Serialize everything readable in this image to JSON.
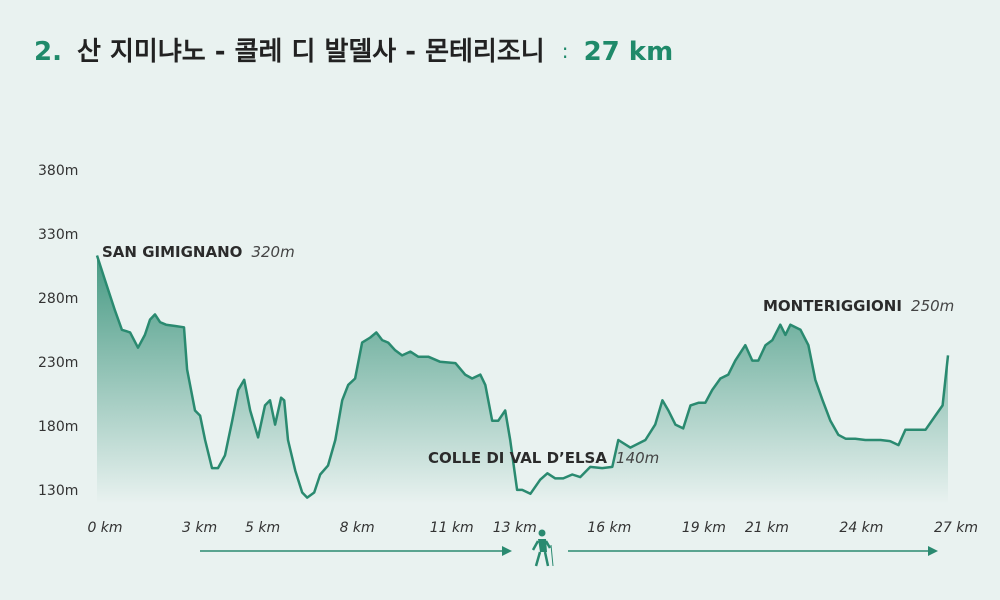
{
  "chart_data": {
    "type": "area",
    "title_number": "2.",
    "title": "산 지미냐노 - 콜레 디 발델사 - 몬테리조니",
    "separator": ":",
    "distance": "27 km",
    "color": "#2a8a70",
    "x": [
      0,
      0.25,
      0.57,
      0.79,
      1.05,
      1.3,
      1.52,
      1.68,
      1.84,
      2,
      2.19,
      2.48,
      2.76,
      2.86,
      3.11,
      3.27,
      3.43,
      3.65,
      3.84,
      4.06,
      4.29,
      4.48,
      4.67,
      4.86,
      5.11,
      5.33,
      5.49,
      5.65,
      5.84,
      5.94,
      6.06,
      6.29,
      6.51,
      6.67,
      6.89,
      7.08,
      7.33,
      7.56,
      7.78,
      7.97,
      8.19,
      8.41,
      8.67,
      8.86,
      9.05,
      9.24,
      9.46,
      9.68,
      9.94,
      10.19,
      10.51,
      10.89,
      11.37,
      11.68,
      11.9,
      12.16,
      12.32,
      12.54,
      12.73,
      12.95,
      13.11,
      13.33,
      13.49,
      13.75,
      14.06,
      14.29,
      14.54,
      14.79,
      15.08,
      15.33,
      15.65,
      16.03,
      16.35,
      16.54,
      16.92,
      17.4,
      17.71,
      17.94,
      18.13,
      18.35,
      18.6,
      18.83,
      19.08,
      19.3,
      19.52,
      19.78,
      20.03,
      20.25,
      20.57,
      20.79,
      20.98,
      21.21,
      21.43,
      21.68,
      21.84,
      22,
      22.32,
      22.57,
      22.79,
      23.02,
      23.27,
      23.52,
      23.75,
      24.06,
      24.38,
      24.86,
      25.17,
      25.43,
      25.65,
      25.97,
      26.29,
      26.6,
      26.83,
      27
    ],
    "values": [
      314,
      295,
      271,
      256,
      254,
      242,
      252,
      264,
      268,
      262,
      260,
      259,
      258,
      225,
      193,
      189,
      170,
      148,
      148,
      158,
      185,
      209,
      217,
      193,
      172,
      197,
      201,
      182,
      203,
      201,
      170,
      146,
      129,
      125,
      129,
      143,
      150,
      170,
      201,
      213,
      218,
      246,
      250,
      254,
      248,
      246,
      240,
      236,
      239,
      235,
      235,
      231,
      230,
      221,
      218,
      221,
      213,
      185,
      185,
      193,
      170,
      131,
      131,
      128,
      139,
      144,
      140,
      140,
      143,
      141,
      149,
      148,
      149,
      170,
      164,
      170,
      182,
      201,
      193,
      182,
      179,
      197,
      199,
      199,
      209,
      218,
      221,
      232,
      244,
      232,
      232,
      244,
      248,
      260,
      252,
      260,
      256,
      244,
      217,
      201,
      185,
      174,
      171,
      171,
      170,
      170,
      169,
      166,
      178,
      178,
      178,
      189,
      197,
      236
    ],
    "xlim": [
      0,
      27
    ],
    "ylim": [
      120,
      380
    ],
    "xticks": [
      {
        "value": 0,
        "label": "0 km"
      },
      {
        "value": 3,
        "label": "3 km"
      },
      {
        "value": 5,
        "label": "5 km"
      },
      {
        "value": 8,
        "label": "8 km"
      },
      {
        "value": 11,
        "label": "11 km"
      },
      {
        "value": 13,
        "label": "13 km"
      },
      {
        "value": 16,
        "label": "16 km"
      },
      {
        "value": 19,
        "label": "19 km"
      },
      {
        "value": 21,
        "label": "21 km"
      },
      {
        "value": 24,
        "label": "24 km"
      },
      {
        "value": 27,
        "label": "27 km"
      }
    ],
    "yticks": [
      {
        "value": 130,
        "label": "130m"
      },
      {
        "value": 180,
        "label": "180m"
      },
      {
        "value": 230,
        "label": "230m"
      },
      {
        "value": 280,
        "label": "280m"
      },
      {
        "value": 330,
        "label": "330m"
      },
      {
        "value": 380,
        "label": "380m"
      }
    ],
    "annotations": [
      {
        "name": "SAN GIMIGNANO",
        "elevation": "320m"
      },
      {
        "name": "COLLE DI VAL D’ELSA",
        "elevation": "140m"
      },
      {
        "name": "MONTERIGGIONI",
        "elevation": "250m"
      }
    ]
  }
}
